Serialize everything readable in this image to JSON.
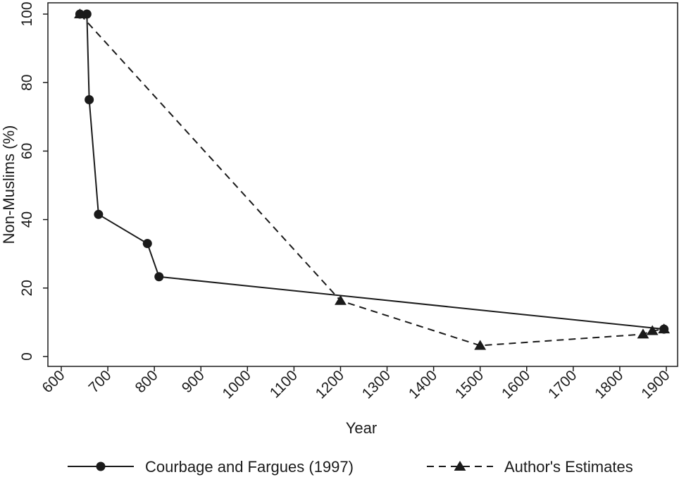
{
  "chart_data": {
    "type": "line",
    "title": "",
    "xlabel": "Year",
    "ylabel": "Non-Muslims (%)",
    "xlim": [
      600,
      1900
    ],
    "ylim": [
      0,
      100
    ],
    "x_ticks": [
      600,
      700,
      800,
      900,
      1000,
      1100,
      1200,
      1300,
      1400,
      1500,
      1600,
      1700,
      1800,
      1900
    ],
    "y_ticks": [
      0,
      20,
      40,
      60,
      80,
      100
    ],
    "grid": false,
    "legend_position": "bottom",
    "series": [
      {
        "name": "Courbage and Fargues (1997)",
        "marker": "circle",
        "line_style": "solid",
        "color": "#1a1a1a",
        "points": [
          {
            "x": 640,
            "y": 100
          },
          {
            "x": 655,
            "y": 100
          },
          {
            "x": 660,
            "y": 75
          },
          {
            "x": 680,
            "y": 41.5
          },
          {
            "x": 785,
            "y": 33
          },
          {
            "x": 810,
            "y": 23.3
          },
          {
            "x": 1895,
            "y": 8
          }
        ]
      },
      {
        "name": "Author's Estimates",
        "marker": "triangle",
        "line_style": "dashed",
        "color": "#1a1a1a",
        "points": [
          {
            "x": 640,
            "y": 100
          },
          {
            "x": 1200,
            "y": 16.3
          },
          {
            "x": 1500,
            "y": 3.2
          },
          {
            "x": 1850,
            "y": 6.5
          },
          {
            "x": 1870,
            "y": 7.5
          },
          {
            "x": 1895,
            "y": 8
          }
        ]
      }
    ]
  }
}
